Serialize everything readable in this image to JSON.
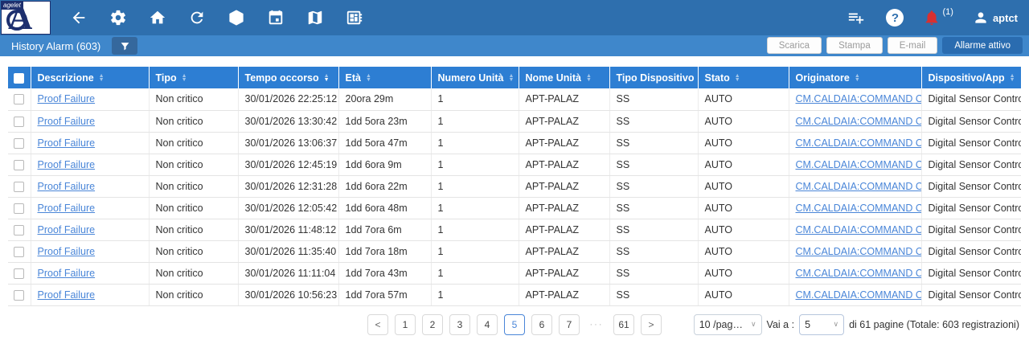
{
  "topbar": {
    "brand": "agelet",
    "brand_letter": "A",
    "notification_badge": "(1)",
    "username": "aptct",
    "help_glyph": "?"
  },
  "subbar": {
    "title": "History Alarm (603)",
    "buttons": {
      "download": "Scarica",
      "print": "Stampa",
      "email": "E-mail",
      "active_alarm": "Allarme attivo"
    }
  },
  "table": {
    "columns": [
      "Descrizione",
      "Tipo",
      "Tempo occorso",
      "Età",
      "Numero Unità",
      "Nome Unità",
      "Tipo Dispositivo",
      "Stato",
      "Originatore",
      "Dispositivo/App"
    ],
    "sorted_column": "Tempo occorso",
    "sort_direction": "desc",
    "rows": [
      {
        "descrizione": "Proof Failure",
        "tipo": "Non critico",
        "tempo": "30/01/2026 22:25:12",
        "eta": "20ora 29m",
        "numero": "1",
        "nome": "APT-PALAZ",
        "tipo_disp": "SS",
        "stato": "AUTO",
        "originatore": "CM.CALDAIA:COMMAND OUT",
        "dispositivo": "Digital Sensor Control"
      },
      {
        "descrizione": "Proof Failure",
        "tipo": "Non critico",
        "tempo": "30/01/2026 13:30:42",
        "eta": "1dd 5ora 23m",
        "numero": "1",
        "nome": "APT-PALAZ",
        "tipo_disp": "SS",
        "stato": "AUTO",
        "originatore": "CM.CALDAIA:COMMAND OUT",
        "dispositivo": "Digital Sensor Control"
      },
      {
        "descrizione": "Proof Failure",
        "tipo": "Non critico",
        "tempo": "30/01/2026 13:06:37",
        "eta": "1dd 5ora 47m",
        "numero": "1",
        "nome": "APT-PALAZ",
        "tipo_disp": "SS",
        "stato": "AUTO",
        "originatore": "CM.CALDAIA:COMMAND OUT",
        "dispositivo": "Digital Sensor Control"
      },
      {
        "descrizione": "Proof Failure",
        "tipo": "Non critico",
        "tempo": "30/01/2026 12:45:19",
        "eta": "1dd 6ora 9m",
        "numero": "1",
        "nome": "APT-PALAZ",
        "tipo_disp": "SS",
        "stato": "AUTO",
        "originatore": "CM.CALDAIA:COMMAND OUT",
        "dispositivo": "Digital Sensor Control"
      },
      {
        "descrizione": "Proof Failure",
        "tipo": "Non critico",
        "tempo": "30/01/2026 12:31:28",
        "eta": "1dd 6ora 22m",
        "numero": "1",
        "nome": "APT-PALAZ",
        "tipo_disp": "SS",
        "stato": "AUTO",
        "originatore": "CM.CALDAIA:COMMAND OUT",
        "dispositivo": "Digital Sensor Control"
      },
      {
        "descrizione": "Proof Failure",
        "tipo": "Non critico",
        "tempo": "30/01/2026 12:05:42",
        "eta": "1dd 6ora 48m",
        "numero": "1",
        "nome": "APT-PALAZ",
        "tipo_disp": "SS",
        "stato": "AUTO",
        "originatore": "CM.CALDAIA:COMMAND OUT",
        "dispositivo": "Digital Sensor Control"
      },
      {
        "descrizione": "Proof Failure",
        "tipo": "Non critico",
        "tempo": "30/01/2026 11:48:12",
        "eta": "1dd 7ora 6m",
        "numero": "1",
        "nome": "APT-PALAZ",
        "tipo_disp": "SS",
        "stato": "AUTO",
        "originatore": "CM.CALDAIA:COMMAND OUT",
        "dispositivo": "Digital Sensor Control"
      },
      {
        "descrizione": "Proof Failure",
        "tipo": "Non critico",
        "tempo": "30/01/2026 11:35:40",
        "eta": "1dd 7ora 18m",
        "numero": "1",
        "nome": "APT-PALAZ",
        "tipo_disp": "SS",
        "stato": "AUTO",
        "originatore": "CM.CALDAIA:COMMAND OUT",
        "dispositivo": "Digital Sensor Control"
      },
      {
        "descrizione": "Proof Failure",
        "tipo": "Non critico",
        "tempo": "30/01/2026 11:11:04",
        "eta": "1dd 7ora 43m",
        "numero": "1",
        "nome": "APT-PALAZ",
        "tipo_disp": "SS",
        "stato": "AUTO",
        "originatore": "CM.CALDAIA:COMMAND OUT",
        "dispositivo": "Digital Sensor Control"
      },
      {
        "descrizione": "Proof Failure",
        "tipo": "Non critico",
        "tempo": "30/01/2026 10:56:23",
        "eta": "1dd 7ora 57m",
        "numero": "1",
        "nome": "APT-PALAZ",
        "tipo_disp": "SS",
        "stato": "AUTO",
        "originatore": "CM.CALDAIA:COMMAND OUT",
        "dispositivo": "Digital Sensor Control"
      }
    ]
  },
  "pagination": {
    "prev_icon": "<",
    "next_icon": ">",
    "pages": [
      "1",
      "2",
      "3",
      "4",
      "5",
      "6",
      "7"
    ],
    "current": "5",
    "ellipsis": "···",
    "last_page": "61",
    "page_size_value": "10 /pag…",
    "goto_label": "Vai a :",
    "goto_value": "5",
    "chevron_icon": "∨",
    "summary": "di 61 pagine (Totale: 603 registrazioni)"
  },
  "colors": {
    "topbar": "#2e6fae",
    "subbar": "#3f87cb",
    "table_header": "#2d7ed3",
    "primary_button": "#2a6cb0",
    "link": "#4a86d8",
    "bell": "#d93030"
  }
}
